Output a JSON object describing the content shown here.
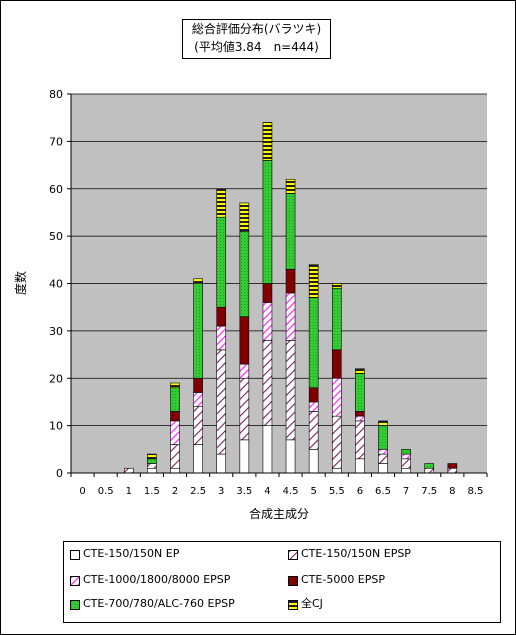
{
  "colors": {
    "plot_bg": "#c0c0c0",
    "white_fill": "#ffffff",
    "hatch_color": "#7a1f5f",
    "pink_hatch": "#ff33ff",
    "dark_red": "#800000",
    "green": "#33cc33",
    "yellow": "#ffff00"
  },
  "chart_data": {
    "type": "bar",
    "stacked": true,
    "title_lines": [
      "総合評価分布(バラツキ)",
      "(平均値3.84　n=444)"
    ],
    "xlabel": "合成主成分",
    "ylabel": "度数",
    "ylim": [
      0,
      80
    ],
    "yticks": [
      0,
      10,
      20,
      30,
      40,
      50,
      60,
      70,
      80
    ],
    "grid": true,
    "legend_placement": "bottom",
    "categories": [
      "0",
      "0.5",
      "1",
      "1.5",
      "2",
      "2.5",
      "3",
      "3.5",
      "4",
      "4.5",
      "5",
      "5.5",
      "6",
      "6.5",
      "7",
      "7.5",
      "8",
      "8.5"
    ],
    "series": [
      {
        "name": "CTE-150/150N EP",
        "pattern": "white",
        "values": [
          0,
          0,
          0,
          1,
          1,
          6,
          4,
          7,
          10,
          7,
          5,
          1,
          3,
          2,
          1,
          0,
          0,
          0
        ]
      },
      {
        "name": "CTE-150/150N EPSP",
        "pattern": "hatch",
        "values": [
          0,
          0,
          1,
          1,
          5,
          8,
          22,
          13,
          18,
          21,
          8,
          11,
          8,
          2,
          2,
          1,
          1,
          0
        ]
      },
      {
        "name": "CTE-1000/1800/8000 EPSP",
        "pattern": "pink",
        "values": [
          0,
          0,
          0,
          0,
          5,
          3,
          5,
          3,
          8,
          10,
          2,
          8,
          1,
          1,
          1,
          0,
          0,
          0
        ]
      },
      {
        "name": "CTE-5000 EPSP",
        "pattern": "darkred",
        "values": [
          0,
          0,
          0,
          0,
          2,
          3,
          4,
          10,
          4,
          5,
          3,
          6,
          1,
          0,
          0,
          0,
          1,
          0
        ]
      },
      {
        "name": "CTE-700/780/ALC-760 EPSP",
        "pattern": "green",
        "values": [
          0,
          0,
          0,
          1,
          5,
          20,
          19,
          18,
          26,
          16,
          19,
          13,
          8,
          5,
          1,
          1,
          0,
          0
        ]
      },
      {
        "name": "全CJ",
        "pattern": "yellow",
        "values": [
          0,
          0,
          0,
          1,
          1,
          1,
          6,
          6,
          8,
          3,
          7,
          1,
          1,
          1,
          0,
          0,
          0,
          0
        ]
      }
    ]
  }
}
